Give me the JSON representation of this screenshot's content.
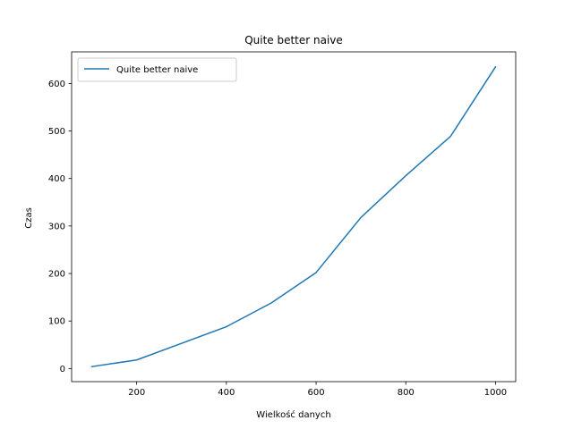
{
  "chart_data": {
    "type": "line",
    "title": "Quite better naive",
    "xlabel": "Wielkość danych",
    "ylabel": "Czas",
    "x": [
      100,
      200,
      300,
      400,
      500,
      600,
      700,
      800,
      900,
      1000
    ],
    "series": [
      {
        "name": "Quite better naive",
        "color": "#1f77b4",
        "values": [
          4,
          18,
          53,
          88,
          138,
          202,
          318,
          406,
          489,
          635
        ]
      }
    ],
    "xlim": [
      55,
      1045
    ],
    "ylim": [
      -27.6,
      666.6
    ],
    "xticks": [
      200,
      400,
      600,
      800,
      1000
    ],
    "yticks": [
      0,
      100,
      200,
      300,
      400,
      500,
      600
    ],
    "grid": false,
    "legend": "upper-left"
  }
}
